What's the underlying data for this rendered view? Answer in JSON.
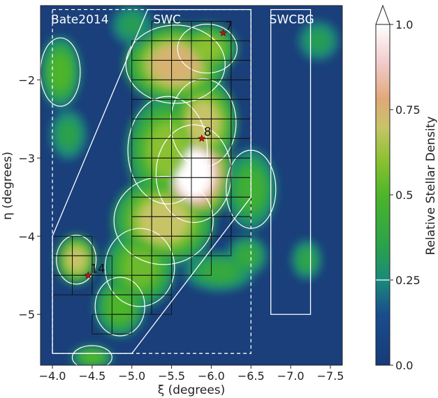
{
  "chart_data": {
    "type": "heatmap",
    "xlabel": "ξ (degrees)",
    "ylabel": "η (degrees)",
    "xlim": [
      -3.85,
      -7.65
    ],
    "ylim": [
      -5.65,
      -1.05
    ],
    "xticks": [
      {
        "value": -4.0,
        "label": "−4.0"
      },
      {
        "value": -4.5,
        "label": "−4.5"
      },
      {
        "value": -5.0,
        "label": "−5.0"
      },
      {
        "value": -5.5,
        "label": "−5.5"
      },
      {
        "value": -6.0,
        "label": "−6.0"
      },
      {
        "value": -6.5,
        "label": "−6.5"
      },
      {
        "value": -7.0,
        "label": "−7.0"
      },
      {
        "value": -7.5,
        "label": "−7.5"
      }
    ],
    "yticks": [
      {
        "value": -2,
        "label": "−2"
      },
      {
        "value": -3,
        "label": "−3"
      },
      {
        "value": -4,
        "label": "−4"
      },
      {
        "value": -5,
        "label": "−5"
      }
    ],
    "colorbar": {
      "label": "Relative Stellar Density",
      "range": [
        0.0,
        1.0
      ],
      "ticks": [
        {
          "value": 0.0,
          "label": "0.0"
        },
        {
          "value": 0.25,
          "label": "0.25"
        },
        {
          "value": 0.5,
          "label": "0.5"
        },
        {
          "value": 0.75,
          "label": "0.75"
        },
        {
          "value": 1.0,
          "label": "1.0"
        }
      ],
      "colormap": "gist_earth-like",
      "extend": "max"
    },
    "regions": [
      {
        "label": "Bate2014",
        "style": "dashed",
        "points": [
          [
            -4.0,
            -1.1
          ],
          [
            -6.5,
            -1.1
          ],
          [
            -6.5,
            -5.5
          ],
          [
            -4.0,
            -5.5
          ]
        ]
      },
      {
        "label": "SWC",
        "style": "solid",
        "points": [
          [
            -4.0,
            -4.0
          ],
          [
            -5.2,
            -1.1
          ],
          [
            -6.5,
            -1.1
          ],
          [
            -6.5,
            -3.5
          ],
          [
            -5.0,
            -5.5
          ],
          [
            -4.0,
            -5.5
          ]
        ]
      },
      {
        "label": "SWCBG",
        "style": "solid",
        "points": [
          [
            -6.75,
            -1.1
          ],
          [
            -7.25,
            -1.1
          ],
          [
            -7.25,
            -5.0
          ],
          [
            -6.75,
            -5.0
          ]
        ]
      }
    ],
    "grid_boxes": [
      [
        -5.25,
        -1.25
      ],
      [
        -5.5,
        -1.25
      ],
      [
        -5.75,
        -1.25
      ],
      [
        -6.0,
        -1.25
      ],
      [
        -5.0,
        -1.5
      ],
      [
        -5.25,
        -1.5
      ],
      [
        -5.5,
        -1.5
      ],
      [
        -5.75,
        -1.5
      ],
      [
        -6.0,
        -1.5
      ],
      [
        -6.25,
        -1.5
      ],
      [
        -5.0,
        -1.75
      ],
      [
        -5.25,
        -1.75
      ],
      [
        -5.5,
        -1.75
      ],
      [
        -5.75,
        -1.75
      ],
      [
        -6.0,
        -1.75
      ],
      [
        -6.25,
        -1.75
      ],
      [
        -5.0,
        -2.0
      ],
      [
        -5.25,
        -2.0
      ],
      [
        -5.5,
        -2.0
      ],
      [
        -5.75,
        -2.0
      ],
      [
        -6.0,
        -2.0
      ],
      [
        -6.25,
        -2.0
      ],
      [
        -5.0,
        -2.25
      ],
      [
        -5.25,
        -2.25
      ],
      [
        -5.5,
        -2.25
      ],
      [
        -5.75,
        -2.25
      ],
      [
        -6.0,
        -2.25
      ],
      [
        -6.25,
        -2.25
      ],
      [
        -5.0,
        -2.5
      ],
      [
        -5.25,
        -2.5
      ],
      [
        -5.5,
        -2.5
      ],
      [
        -5.75,
        -2.5
      ],
      [
        -6.0,
        -2.5
      ],
      [
        -6.25,
        -2.5
      ],
      [
        -5.0,
        -2.75
      ],
      [
        -5.25,
        -2.75
      ],
      [
        -5.5,
        -2.75
      ],
      [
        -5.75,
        -2.75
      ],
      [
        -6.0,
        -2.75
      ],
      [
        -6.25,
        -2.75
      ],
      [
        -5.0,
        -3.0
      ],
      [
        -5.25,
        -3.0
      ],
      [
        -5.5,
        -3.0
      ],
      [
        -5.75,
        -3.0
      ],
      [
        -6.0,
        -3.0
      ],
      [
        -6.25,
        -3.0
      ],
      [
        -5.0,
        -3.25
      ],
      [
        -5.25,
        -3.25
      ],
      [
        -5.5,
        -3.25
      ],
      [
        -5.75,
        -3.25
      ],
      [
        -6.0,
        -3.25
      ],
      [
        -6.25,
        -3.25
      ],
      [
        -5.0,
        -3.5
      ],
      [
        -5.25,
        -3.5
      ],
      [
        -5.5,
        -3.5
      ],
      [
        -5.75,
        -3.5
      ],
      [
        -6.0,
        -3.5
      ],
      [
        -6.25,
        -3.5
      ],
      [
        -5.0,
        -3.75
      ],
      [
        -5.25,
        -3.75
      ],
      [
        -5.5,
        -3.75
      ],
      [
        -5.75,
        -3.75
      ],
      [
        -6.0,
        -3.75
      ],
      [
        -6.25,
        -3.75
      ],
      [
        -5.0,
        -4.0
      ],
      [
        -5.25,
        -4.0
      ],
      [
        -5.5,
        -4.0
      ],
      [
        -5.75,
        -4.0
      ],
      [
        -6.0,
        -4.0
      ],
      [
        -5.0,
        -4.25
      ],
      [
        -5.25,
        -4.25
      ],
      [
        -5.5,
        -4.25
      ],
      [
        -5.75,
        -4.25
      ],
      [
        -4.75,
        -4.5
      ],
      [
        -5.0,
        -4.5
      ],
      [
        -5.25,
        -4.5
      ],
      [
        -4.75,
        -4.75
      ],
      [
        -5.0,
        -4.75
      ],
      [
        -5.25,
        -4.75
      ],
      [
        -4.5,
        -5.0
      ],
      [
        -4.75,
        -5.0
      ],
      [
        -4.0,
        -4.0
      ],
      [
        -4.25,
        -4.0
      ],
      [
        -4.0,
        -4.25
      ],
      [
        -4.25,
        -4.25
      ],
      [
        -4.5,
        -4.25
      ],
      [
        -4.0,
        -4.5
      ],
      [
        -4.25,
        -4.5
      ],
      [
        -4.5,
        -4.5
      ]
    ],
    "stars": [
      {
        "label": "7",
        "x": -6.15,
        "y": -1.4
      },
      {
        "label": "8",
        "x": -5.88,
        "y": -2.75
      },
      {
        "label": "14",
        "x": -4.45,
        "y": -4.5
      }
    ],
    "density_blobs": [
      {
        "x": -5.78,
        "y": -3.2,
        "sx": 0.38,
        "sy": 0.5,
        "a": 0.85
      },
      {
        "x": -5.9,
        "y": -2.55,
        "sx": 0.33,
        "sy": 0.45,
        "a": 0.55
      },
      {
        "x": -5.55,
        "y": -1.8,
        "sx": 0.5,
        "sy": 0.4,
        "a": 0.6
      },
      {
        "x": -5.95,
        "y": -1.6,
        "sx": 0.3,
        "sy": 0.25,
        "a": 0.45
      },
      {
        "x": -5.45,
        "y": -2.9,
        "sx": 0.4,
        "sy": 0.55,
        "a": 0.45
      },
      {
        "x": -5.4,
        "y": -3.8,
        "sx": 0.5,
        "sy": 0.45,
        "a": 0.55
      },
      {
        "x": -5.1,
        "y": -4.4,
        "sx": 0.35,
        "sy": 0.4,
        "a": 0.4
      },
      {
        "x": -4.85,
        "y": -4.9,
        "sx": 0.25,
        "sy": 0.3,
        "a": 0.35
      },
      {
        "x": -4.3,
        "y": -4.3,
        "sx": 0.2,
        "sy": 0.25,
        "a": 0.55
      },
      {
        "x": -4.1,
        "y": -1.9,
        "sx": 0.2,
        "sy": 0.35,
        "a": 0.35
      },
      {
        "x": -4.2,
        "y": -2.7,
        "sx": 0.18,
        "sy": 0.25,
        "a": 0.2
      },
      {
        "x": -6.5,
        "y": -3.4,
        "sx": 0.25,
        "sy": 0.4,
        "a": 0.3
      },
      {
        "x": -6.45,
        "y": -4.25,
        "sx": 0.2,
        "sy": 0.2,
        "a": 0.25
      },
      {
        "x": -7.2,
        "y": -4.3,
        "sx": 0.15,
        "sy": 0.2,
        "a": 0.22
      },
      {
        "x": -4.5,
        "y": -5.55,
        "sx": 0.2,
        "sy": 0.12,
        "a": 0.35
      },
      {
        "x": -6.1,
        "y": -4.45,
        "sx": 0.35,
        "sy": 0.2,
        "a": 0.25
      },
      {
        "x": -5.0,
        "y": -1.3,
        "sx": 0.2,
        "sy": 0.2,
        "a": 0.18
      },
      {
        "x": -7.35,
        "y": -1.5,
        "sx": 0.2,
        "sy": 0.2,
        "a": 0.18
      }
    ],
    "colors": {
      "background": "#1a3f7a",
      "contour": "#ffffff",
      "star": "#c0141c"
    }
  }
}
